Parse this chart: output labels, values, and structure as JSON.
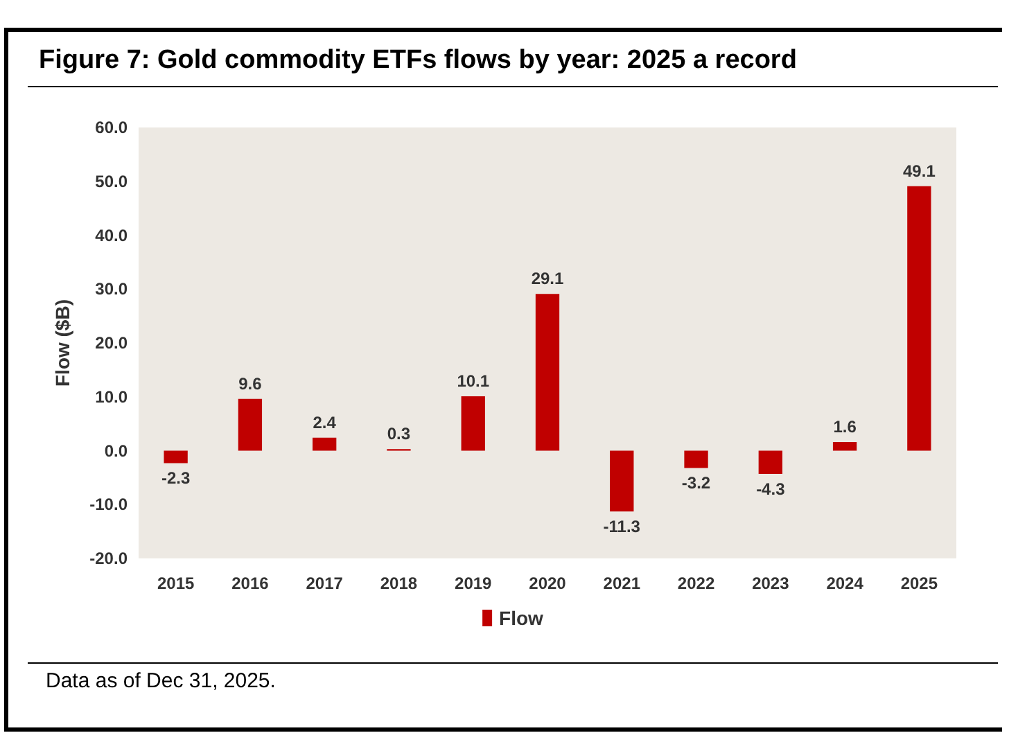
{
  "chart_data": {
    "type": "bar",
    "title": "Figure 7: Gold commodity ETFs flows by year: 2025 a record",
    "ylabel": "Flow ($B)",
    "categories": [
      "2015",
      "2016",
      "2017",
      "2018",
      "2019",
      "2020",
      "2021",
      "2022",
      "2023",
      "2024",
      "2025"
    ],
    "series": [
      {
        "name": "Flow",
        "color": "#c00000",
        "values": [
          -2.3,
          9.6,
          2.4,
          0.3,
          10.1,
          29.1,
          -11.3,
          -3.2,
          -4.3,
          1.6,
          49.1
        ]
      }
    ],
    "value_labels": [
      "-2.3",
      "9.6",
      "2.4",
      "0.3",
      "10.1",
      "29.1",
      "-11.3",
      "-3.2",
      "-4.3",
      "1.6",
      "49.1"
    ],
    "ylim": [
      -20,
      60
    ],
    "yticks": [
      {
        "value": -20,
        "label": "-20.0"
      },
      {
        "value": -10,
        "label": "-10.0"
      },
      {
        "value": 0,
        "label": "0.0"
      },
      {
        "value": 10,
        "label": "10.0"
      },
      {
        "value": 20,
        "label": "20.0"
      },
      {
        "value": 30,
        "label": "30.0"
      },
      {
        "value": 40,
        "label": "40.0"
      },
      {
        "value": 50,
        "label": "50.0"
      },
      {
        "value": 60,
        "label": "60.0"
      }
    ],
    "legend": "bottom",
    "annotations": [
      "Data as of Dec 31, 2025."
    ]
  }
}
